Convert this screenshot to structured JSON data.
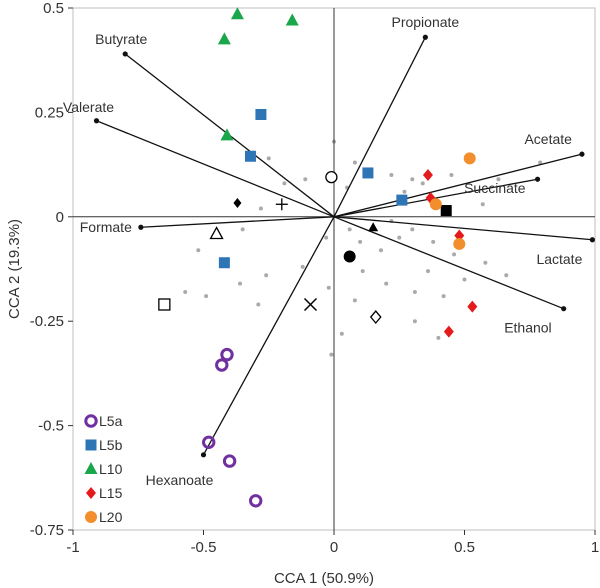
{
  "chart_data": {
    "type": "scatter",
    "xlabel": "CCA 1 (50.9%)",
    "ylabel": "CCA 2 (19.3%)",
    "xlim": [
      -1,
      1
    ],
    "ylim": [
      -0.75,
      0.5
    ],
    "x_ticks": [
      "-1",
      "-0.5",
      "0",
      "0.5",
      "1"
    ],
    "y_ticks": [
      "0.5",
      "0.25",
      "0",
      "-0.25",
      "-0.5",
      "-0.75"
    ],
    "grid": false,
    "legend_position": "bottom-left",
    "colors": {
      "L5a": "#7030a0",
      "L5b": "#2e75b6",
      "L10": "#1aa64a",
      "L15": "#e41a1c",
      "L20": "#f28e2b",
      "arrow": "#111111",
      "background_points": "#aaaaaa"
    },
    "variables": [
      {
        "name": "Propionate",
        "x": 0.35,
        "y": 0.43
      },
      {
        "name": "Butyrate",
        "x": -0.8,
        "y": 0.39
      },
      {
        "name": "Valerate",
        "x": -0.91,
        "y": 0.23
      },
      {
        "name": "Acetate",
        "x": 0.95,
        "y": 0.15
      },
      {
        "name": "Succinate",
        "x": 0.78,
        "y": 0.09
      },
      {
        "name": "Formate",
        "x": -0.74,
        "y": -0.025
      },
      {
        "name": "Lactate",
        "x": 0.99,
        "y": -0.055
      },
      {
        "name": "Ethanol",
        "x": 0.88,
        "y": -0.22
      },
      {
        "name": "Hexanoate",
        "x": -0.5,
        "y": -0.57
      }
    ],
    "series": [
      {
        "name": "L5a",
        "marker": "ring",
        "points": [
          [
            -0.41,
            -0.33
          ],
          [
            -0.43,
            -0.355
          ],
          [
            -0.48,
            -0.54
          ],
          [
            -0.4,
            -0.585
          ],
          [
            -0.3,
            -0.68
          ]
        ]
      },
      {
        "name": "L5b",
        "marker": "square",
        "points": [
          [
            -0.28,
            0.245
          ],
          [
            -0.32,
            0.145
          ],
          [
            -0.42,
            -0.11
          ],
          [
            0.13,
            0.105
          ],
          [
            0.26,
            0.04
          ]
        ]
      },
      {
        "name": "L10",
        "marker": "triangle",
        "points": [
          [
            -0.37,
            0.485
          ],
          [
            -0.16,
            0.47
          ],
          [
            -0.42,
            0.425
          ],
          [
            -0.41,
            0.195
          ]
        ]
      },
      {
        "name": "L15",
        "marker": "diamond",
        "points": [
          [
            0.36,
            0.1
          ],
          [
            0.37,
            0.045
          ],
          [
            0.48,
            -0.045
          ],
          [
            0.53,
            -0.215
          ],
          [
            0.44,
            -0.275
          ]
        ]
      },
      {
        "name": "L20",
        "marker": "circle",
        "points": [
          [
            0.52,
            0.14
          ],
          [
            0.39,
            0.03
          ],
          [
            0.48,
            -0.065
          ]
        ]
      }
    ],
    "other_points": [
      {
        "marker": "open-circle",
        "x": -0.01,
        "y": 0.095
      },
      {
        "marker": "black-diamond",
        "x": -0.37,
        "y": 0.033
      },
      {
        "marker": "plus",
        "x": -0.2,
        "y": 0.03
      },
      {
        "marker": "open-triangle",
        "x": -0.45,
        "y": -0.04
      },
      {
        "marker": "open-square",
        "x": -0.65,
        "y": -0.21
      },
      {
        "marker": "x-mark",
        "x": -0.09,
        "y": -0.21
      },
      {
        "marker": "open-diamond",
        "x": 0.16,
        "y": -0.24
      },
      {
        "marker": "black-circle",
        "x": 0.06,
        "y": -0.095
      },
      {
        "marker": "black-triangle",
        "x": 0.15,
        "y": -0.025
      },
      {
        "marker": "black-square",
        "x": 0.43,
        "y": 0.015
      }
    ],
    "background_points": [
      [
        -0.25,
        0.14
      ],
      [
        -0.19,
        0.08
      ],
      [
        -0.11,
        0.09
      ],
      [
        -0.28,
        0.02
      ],
      [
        0.0,
        0.18
      ],
      [
        0.08,
        0.13
      ],
      [
        0.05,
        0.07
      ],
      [
        0.22,
        0.1
      ],
      [
        0.3,
        0.09
      ],
      [
        0.27,
        0.06
      ],
      [
        0.34,
        0.08
      ],
      [
        0.45,
        0.1
      ],
      [
        0.57,
        0.03
      ],
      [
        0.63,
        0.09
      ],
      [
        0.79,
        0.13
      ],
      [
        0.22,
        -0.01
      ],
      [
        0.1,
        -0.06
      ],
      [
        0.06,
        -0.03
      ],
      [
        0.25,
        -0.05
      ],
      [
        0.3,
        -0.03
      ],
      [
        0.38,
        -0.06
      ],
      [
        0.46,
        -0.09
      ],
      [
        0.58,
        -0.11
      ],
      [
        0.66,
        -0.14
      ],
      [
        0.36,
        -0.13
      ],
      [
        0.31,
        -0.18
      ],
      [
        0.2,
        -0.16
      ],
      [
        0.11,
        -0.13
      ],
      [
        0.08,
        -0.2
      ],
      [
        0.03,
        -0.28
      ],
      [
        -0.02,
        -0.17
      ],
      [
        -0.12,
        -0.12
      ],
      [
        -0.26,
        -0.14
      ],
      [
        -0.36,
        -0.16
      ],
      [
        -0.52,
        -0.08
      ],
      [
        -0.35,
        -0.03
      ],
      [
        -0.29,
        -0.21
      ],
      [
        -0.49,
        -0.19
      ],
      [
        -0.03,
        -0.05
      ],
      [
        0.18,
        -0.08
      ],
      [
        0.42,
        -0.19
      ],
      [
        0.4,
        -0.29
      ],
      [
        0.31,
        -0.25
      ],
      [
        0.5,
        -0.15
      ],
      [
        -0.57,
        -0.18
      ],
      [
        -0.01,
        -0.33
      ]
    ]
  }
}
